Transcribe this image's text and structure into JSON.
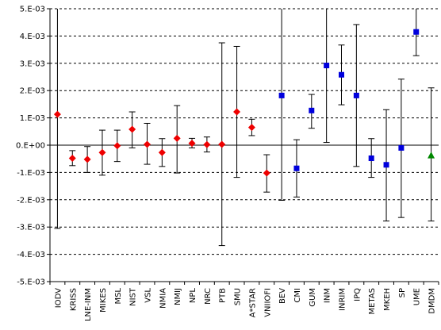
{
  "chart_data": {
    "type": "scatter",
    "title": "",
    "xlabel": "",
    "ylabel": "",
    "ylim": [
      -0.005,
      0.005
    ],
    "ytick_values": [
      0.005,
      0.004,
      0.003,
      0.002,
      0.001,
      0,
      -0.001,
      -0.002,
      -0.003,
      -0.004,
      -0.005
    ],
    "ytick_labels": [
      "5.E-03",
      "4.E-03",
      "3.E-03",
      "2.E-03",
      "1.E-03",
      "0.E+00",
      "-1.E-03",
      "-2.E-03",
      "-3.E-03",
      "-4.E-03",
      "-5.E-03"
    ],
    "grid": "horizontal dashed",
    "legend": "none",
    "colors": {
      "diamond": "#ee0000",
      "square": "#0000dd",
      "triangle": "#008800",
      "errorbar": "#000000",
      "grid": "#000000"
    },
    "categories": [
      "IODV",
      "KRISS",
      "LNE-INM",
      "MIKES",
      "MSL",
      "NIST",
      "VSL",
      "NMIA",
      "NMIJ",
      "NPL",
      "NRC",
      "PTB",
      "SMU",
      "A*STAR",
      "VNIIOFI",
      "BEV",
      "CMI",
      "GUM",
      "INM",
      "INRIM",
      "IPQ",
      "METAS",
      "MKEH",
      "SP",
      "UME",
      "DMDM"
    ],
    "points": [
      {
        "x": "IODV",
        "y": 0.00113,
        "low": -0.00305,
        "high": 0.0053,
        "marker": "diamond"
      },
      {
        "x": "KRISS",
        "y": -0.00048,
        "low": -0.00075,
        "high": -0.0002,
        "marker": "diamond"
      },
      {
        "x": "LNE-INM",
        "y": -0.00052,
        "low": -0.001,
        "high": -5e-05,
        "marker": "diamond"
      },
      {
        "x": "MIKES",
        "y": -0.00027,
        "low": -0.0011,
        "high": 0.00055,
        "marker": "diamond"
      },
      {
        "x": "MSL",
        "y": -2e-05,
        "low": -0.0006,
        "high": 0.00055,
        "marker": "diamond"
      },
      {
        "x": "NIST",
        "y": 0.00058,
        "low": -0.0001,
        "high": 0.00122,
        "marker": "diamond"
      },
      {
        "x": "VSL",
        "y": 3e-05,
        "low": -0.0007,
        "high": 0.0008,
        "marker": "diamond"
      },
      {
        "x": "NMIA",
        "y": -0.00027,
        "low": -0.00078,
        "high": 0.00024,
        "marker": "diamond"
      },
      {
        "x": "NMIJ",
        "y": 0.00025,
        "low": -0.00102,
        "high": 0.00145,
        "marker": "diamond"
      },
      {
        "x": "NPL",
        "y": 7e-05,
        "low": -0.0001,
        "high": 0.00025,
        "marker": "diamond"
      },
      {
        "x": "NRC",
        "y": 2e-05,
        "low": -0.00025,
        "high": 0.0003,
        "marker": "diamond"
      },
      {
        "x": "PTB",
        "y": 3e-05,
        "low": -0.00368,
        "high": 0.00375,
        "marker": "diamond"
      },
      {
        "x": "SMU",
        "y": 0.00122,
        "low": -0.00118,
        "high": 0.00362,
        "marker": "diamond"
      },
      {
        "x": "A*STAR",
        "y": 0.00065,
        "low": 0.00035,
        "high": 0.00095,
        "marker": "diamond"
      },
      {
        "x": "VNIIOFI",
        "y": -0.00102,
        "low": -0.00172,
        "high": -0.00035,
        "marker": "diamond"
      },
      {
        "x": "BEV",
        "y": 0.00182,
        "low": -0.00202,
        "high": 0.0053,
        "marker": "square"
      },
      {
        "x": "CMI",
        "y": -0.00085,
        "low": -0.0019,
        "high": 0.0002,
        "marker": "square"
      },
      {
        "x": "GUM",
        "y": 0.00127,
        "low": 0.00062,
        "high": 0.00186,
        "marker": "square"
      },
      {
        "x": "INM",
        "y": 0.00292,
        "low": 0.0001,
        "high": 0.0053,
        "marker": "square"
      },
      {
        "x": "INRIM",
        "y": 0.00258,
        "low": 0.00148,
        "high": 0.00367,
        "marker": "square"
      },
      {
        "x": "IPQ",
        "y": 0.00182,
        "low": -0.00078,
        "high": 0.00442,
        "marker": "square"
      },
      {
        "x": "METAS",
        "y": -0.00048,
        "low": -0.00118,
        "high": 0.00024,
        "marker": "square"
      },
      {
        "x": "MKEH",
        "y": -0.00072,
        "low": -0.00278,
        "high": 0.0013,
        "marker": "square"
      },
      {
        "x": "SP",
        "y": -0.0001,
        "low": -0.00265,
        "high": 0.00242,
        "marker": "square"
      },
      {
        "x": "UME",
        "y": 0.00415,
        "low": 0.00328,
        "high": 0.00502,
        "marker": "square"
      },
      {
        "x": "DMDM",
        "y": -0.00038,
        "low": -0.00278,
        "high": 0.0021,
        "marker": "triangle"
      }
    ]
  }
}
